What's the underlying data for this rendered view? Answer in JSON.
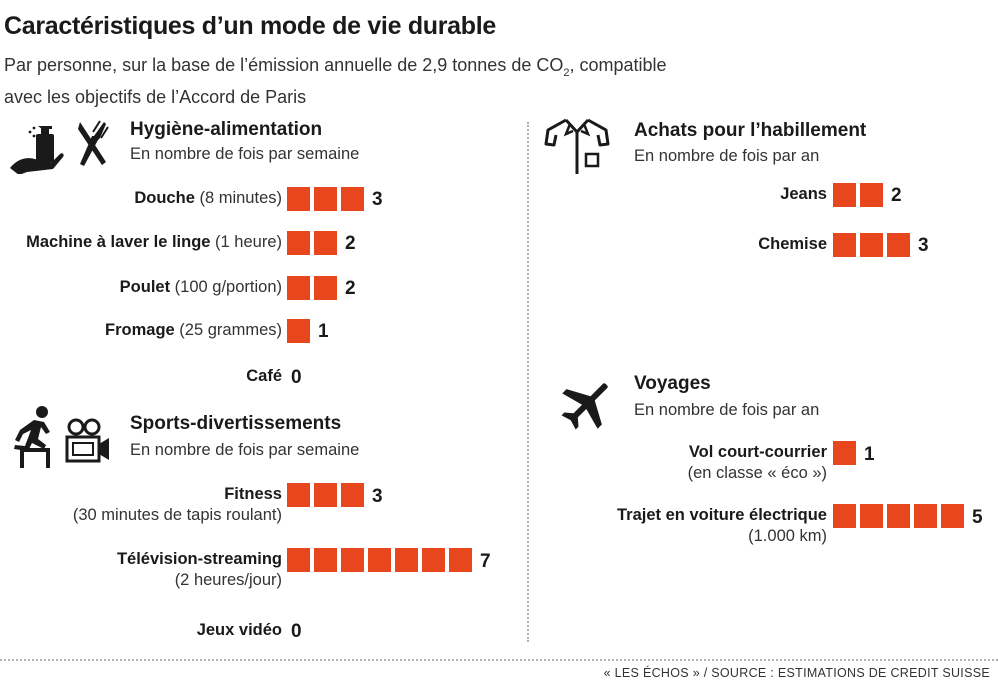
{
  "title": "Caractéristiques d’un mode de vie durable",
  "subtitle": {
    "line1_pre": "Par personne, sur la base de l’émission annuelle de 2,9 tonnes de CO",
    "line1_sub": "2",
    "line1_post": ", compatible",
    "line2": "avec les objectifs de l’Accord de Paris"
  },
  "footer": "« LES ÉCHOS » / SOURCE : ESTIMATIONS DE CREDIT SUISSE",
  "accent_color": "#e8461c",
  "sections": {
    "hygiene": {
      "title": "Hygiène-alimentation",
      "unit": "En nombre de fois par semaine",
      "icons": [
        "soap-hand-icon",
        "fork-knife-icon"
      ]
    },
    "sports": {
      "title": "Sports-divertissements",
      "unit": "En nombre de fois par semaine",
      "icons": [
        "runner-hurdle-icon",
        "video-camera-icon"
      ]
    },
    "clothing": {
      "title": "Achats pour l’habillement",
      "unit": "En nombre de fois par an",
      "icons": [
        "shirt-icon"
      ]
    },
    "travel": {
      "title": "Voyages",
      "unit": "En nombre de fois par an",
      "icons": [
        "airplane-icon"
      ]
    }
  },
  "chart_data": [
    {
      "type": "bar",
      "title": "Hygiène-alimentation",
      "unit": "En nombre de fois par semaine",
      "items": [
        {
          "label": "Douche",
          "note": "(8 minutes)",
          "value": 3
        },
        {
          "label": "Machine à laver le linge",
          "note": "(1 heure)",
          "value": 2
        },
        {
          "label": "Poulet",
          "note": "(100 g/portion)",
          "value": 2
        },
        {
          "label": "Fromage",
          "note": "(25 grammes)",
          "value": 1
        },
        {
          "label": "Café",
          "note": "",
          "value": 0
        }
      ]
    },
    {
      "type": "bar",
      "title": "Sports-divertissements",
      "unit": "En nombre de fois par semaine",
      "items": [
        {
          "label": "Fitness",
          "note": "(30 minutes de tapis roulant)",
          "value": 3
        },
        {
          "label": "Télévision-streaming",
          "note": "(2 heures/jour)",
          "value": 7
        },
        {
          "label": "Jeux vidéo",
          "note": "",
          "value": 0
        }
      ]
    },
    {
      "type": "bar",
      "title": "Achats pour l’habillement",
      "unit": "En nombre de fois par an",
      "items": [
        {
          "label": "Jeans",
          "note": "",
          "value": 2
        },
        {
          "label": "Chemise",
          "note": "",
          "value": 3
        }
      ]
    },
    {
      "type": "bar",
      "title": "Voyages",
      "unit": "En nombre de fois par an",
      "items": [
        {
          "label": "Vol court-courrier",
          "note": "(en classe « éco »)",
          "value": 1
        },
        {
          "label": "Trajet en voiture électrique",
          "note": "(1.000 km)",
          "value": 5
        }
      ]
    }
  ]
}
